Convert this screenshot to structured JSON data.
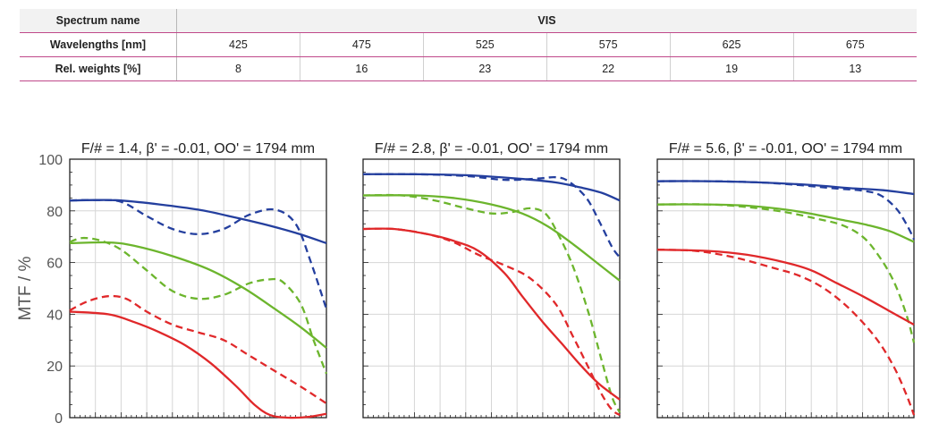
{
  "table": {
    "spectrum_label": "Spectrum name",
    "spectrum_value": "VIS",
    "wavelength_label": "Wavelengths [nm]",
    "wavelengths": [
      "425",
      "475",
      "525",
      "575",
      "625",
      "675"
    ],
    "weights_label": "Rel. weights [%]",
    "weights": [
      "8",
      "16",
      "23",
      "22",
      "19",
      "13"
    ]
  },
  "chart_data": [
    {
      "type": "line",
      "title": "F/# = 1.4, β' = -0.01, OO' = 1794 mm",
      "ylabel": "MTF / %",
      "ylim": [
        0,
        100
      ],
      "yticks": [
        0,
        20,
        40,
        60,
        80,
        100
      ],
      "grid": true,
      "series": [
        {
          "color": "#243f9e",
          "dash": false,
          "points": [
            [
              0,
              84
            ],
            [
              0.1,
              84.2
            ],
            [
              0.2,
              84
            ],
            [
              0.35,
              82.5
            ],
            [
              0.5,
              80.5
            ],
            [
              0.62,
              78
            ],
            [
              0.75,
              75
            ],
            [
              0.88,
              71.5
            ],
            [
              1,
              67.5
            ]
          ]
        },
        {
          "color": "#243f9e",
          "dash": true,
          "points": [
            [
              0,
              84
            ],
            [
              0.1,
              84.2
            ],
            [
              0.2,
              83.5
            ],
            [
              0.3,
              78
            ],
            [
              0.4,
              73
            ],
            [
              0.5,
              71
            ],
            [
              0.6,
              73
            ],
            [
              0.7,
              78.5
            ],
            [
              0.8,
              80.5
            ],
            [
              0.88,
              75
            ],
            [
              0.94,
              60
            ],
            [
              1,
              42
            ]
          ]
        },
        {
          "color": "#6cb52d",
          "dash": false,
          "points": [
            [
              0,
              67.5
            ],
            [
              0.15,
              67.8
            ],
            [
              0.25,
              66.5
            ],
            [
              0.4,
              62.5
            ],
            [
              0.55,
              57
            ],
            [
              0.68,
              50
            ],
            [
              0.8,
              42
            ],
            [
              0.9,
              35
            ],
            [
              1,
              27
            ]
          ]
        },
        {
          "color": "#6cb52d",
          "dash": true,
          "points": [
            [
              0,
              68
            ],
            [
              0.05,
              69.5
            ],
            [
              0.12,
              68.5
            ],
            [
              0.2,
              65
            ],
            [
              0.3,
              57
            ],
            [
              0.4,
              49
            ],
            [
              0.5,
              46
            ],
            [
              0.6,
              47.5
            ],
            [
              0.7,
              52
            ],
            [
              0.78,
              53.5
            ],
            [
              0.83,
              52.5
            ],
            [
              0.9,
              44
            ],
            [
              0.95,
              30
            ],
            [
              1,
              17
            ]
          ]
        },
        {
          "color": "#e0282a",
          "dash": false,
          "points": [
            [
              0,
              41
            ],
            [
              0.15,
              40
            ],
            [
              0.25,
              37
            ],
            [
              0.35,
              33
            ],
            [
              0.45,
              28
            ],
            [
              0.55,
              21
            ],
            [
              0.65,
              12
            ],
            [
              0.72,
              5
            ],
            [
              0.78,
              1
            ],
            [
              0.85,
              0
            ],
            [
              0.93,
              0.3
            ],
            [
              1,
              1.5
            ]
          ]
        },
        {
          "color": "#e0282a",
          "dash": true,
          "points": [
            [
              0,
              41.5
            ],
            [
              0.07,
              45
            ],
            [
              0.15,
              47
            ],
            [
              0.22,
              46
            ],
            [
              0.3,
              41
            ],
            [
              0.4,
              36
            ],
            [
              0.5,
              33
            ],
            [
              0.6,
              30
            ],
            [
              0.7,
              24
            ],
            [
              0.8,
              18
            ],
            [
              0.9,
              12
            ],
            [
              1,
              5.5
            ]
          ]
        }
      ]
    },
    {
      "type": "line",
      "title": "F/# = 2.8, β' = -0.01, OO' = 1794 mm",
      "ylim": [
        0,
        100
      ],
      "grid": true,
      "series": [
        {
          "color": "#243f9e",
          "dash": false,
          "points": [
            [
              0,
              94.2
            ],
            [
              0.2,
              94.2
            ],
            [
              0.4,
              93.8
            ],
            [
              0.6,
              92.5
            ],
            [
              0.75,
              91
            ],
            [
              0.85,
              89
            ],
            [
              0.93,
              87
            ],
            [
              1,
              84
            ]
          ]
        },
        {
          "color": "#243f9e",
          "dash": true,
          "points": [
            [
              0,
              94.2
            ],
            [
              0.2,
              94.2
            ],
            [
              0.4,
              93.5
            ],
            [
              0.55,
              92
            ],
            [
              0.68,
              92.5
            ],
            [
              0.75,
              93
            ],
            [
              0.8,
              91.5
            ],
            [
              0.87,
              85
            ],
            [
              0.92,
              76
            ],
            [
              0.97,
              66
            ],
            [
              1,
              62
            ]
          ]
        },
        {
          "color": "#6cb52d",
          "dash": false,
          "points": [
            [
              0,
              86
            ],
            [
              0.2,
              86
            ],
            [
              0.35,
              85
            ],
            [
              0.5,
              82.5
            ],
            [
              0.62,
              79
            ],
            [
              0.72,
              74
            ],
            [
              0.82,
              67
            ],
            [
              0.91,
              60
            ],
            [
              1,
              53
            ]
          ]
        },
        {
          "color": "#6cb52d",
          "dash": true,
          "points": [
            [
              0,
              86
            ],
            [
              0.15,
              86
            ],
            [
              0.28,
              84
            ],
            [
              0.4,
              81
            ],
            [
              0.5,
              79
            ],
            [
              0.58,
              79.5
            ],
            [
              0.65,
              81
            ],
            [
              0.71,
              79
            ],
            [
              0.76,
              71
            ],
            [
              0.82,
              58
            ],
            [
              0.88,
              40
            ],
            [
              0.93,
              22
            ],
            [
              0.97,
              8
            ],
            [
              1,
              2
            ]
          ]
        },
        {
          "color": "#e0282a",
          "dash": false,
          "points": [
            [
              0,
              73
            ],
            [
              0.12,
              73
            ],
            [
              0.25,
              71
            ],
            [
              0.35,
              68.5
            ],
            [
              0.45,
              64.5
            ],
            [
              0.55,
              56
            ],
            [
              0.62,
              47
            ],
            [
              0.7,
              37
            ],
            [
              0.78,
              28
            ],
            [
              0.85,
              20
            ],
            [
              0.92,
              13
            ],
            [
              1,
              7
            ]
          ]
        },
        {
          "color": "#e0282a",
          "dash": true,
          "points": [
            [
              0,
              73
            ],
            [
              0.12,
              73
            ],
            [
              0.25,
              71
            ],
            [
              0.35,
              68
            ],
            [
              0.45,
              63
            ],
            [
              0.55,
              59
            ],
            [
              0.65,
              54
            ],
            [
              0.75,
              44
            ],
            [
              0.82,
              31
            ],
            [
              0.88,
              19
            ],
            [
              0.93,
              9
            ],
            [
              0.97,
              3
            ],
            [
              1,
              1
            ]
          ]
        }
      ]
    },
    {
      "type": "line",
      "title": "F/# = 5.6, β' = -0.01, OO' = 1794 mm",
      "ylim": [
        0,
        100
      ],
      "grid": true,
      "series": [
        {
          "color": "#243f9e",
          "dash": false,
          "points": [
            [
              0,
              91.5
            ],
            [
              0.2,
              91.5
            ],
            [
              0.4,
              91
            ],
            [
              0.6,
              90
            ],
            [
              0.75,
              88.8
            ],
            [
              0.88,
              88
            ],
            [
              1,
              86.5
            ]
          ]
        },
        {
          "color": "#243f9e",
          "dash": true,
          "points": [
            [
              0,
              91.5
            ],
            [
              0.2,
              91.5
            ],
            [
              0.4,
              91
            ],
            [
              0.55,
              90
            ],
            [
              0.68,
              88.8
            ],
            [
              0.8,
              87.8
            ],
            [
              0.87,
              86
            ],
            [
              0.93,
              81
            ],
            [
              0.97,
              75
            ],
            [
              1,
              69
            ]
          ]
        },
        {
          "color": "#6cb52d",
          "dash": false,
          "points": [
            [
              0,
              82.5
            ],
            [
              0.2,
              82.5
            ],
            [
              0.35,
              82
            ],
            [
              0.5,
              80.5
            ],
            [
              0.62,
              78.5
            ],
            [
              0.72,
              76.5
            ],
            [
              0.82,
              74.5
            ],
            [
              0.91,
              72
            ],
            [
              1,
              68
            ]
          ]
        },
        {
          "color": "#6cb52d",
          "dash": true,
          "points": [
            [
              0,
              82.5
            ],
            [
              0.2,
              82.5
            ],
            [
              0.35,
              81.5
            ],
            [
              0.5,
              79.5
            ],
            [
              0.62,
              77
            ],
            [
              0.72,
              74.5
            ],
            [
              0.8,
              70
            ],
            [
              0.86,
              63
            ],
            [
              0.92,
              53
            ],
            [
              0.97,
              40
            ],
            [
              1,
              29
            ]
          ]
        },
        {
          "color": "#e0282a",
          "dash": false,
          "points": [
            [
              0,
              65
            ],
            [
              0.2,
              64.5
            ],
            [
              0.35,
              63
            ],
            [
              0.5,
              60
            ],
            [
              0.6,
              57
            ],
            [
              0.7,
              52
            ],
            [
              0.8,
              47
            ],
            [
              0.9,
              41.5
            ],
            [
              1,
              36
            ]
          ]
        },
        {
          "color": "#e0282a",
          "dash": true,
          "points": [
            [
              0,
              65
            ],
            [
              0.15,
              64.5
            ],
            [
              0.3,
              62
            ],
            [
              0.45,
              58
            ],
            [
              0.55,
              55
            ],
            [
              0.65,
              50
            ],
            [
              0.75,
              42
            ],
            [
              0.85,
              31
            ],
            [
              0.92,
              20
            ],
            [
              0.97,
              9
            ],
            [
              1,
              1
            ]
          ]
        }
      ]
    }
  ]
}
